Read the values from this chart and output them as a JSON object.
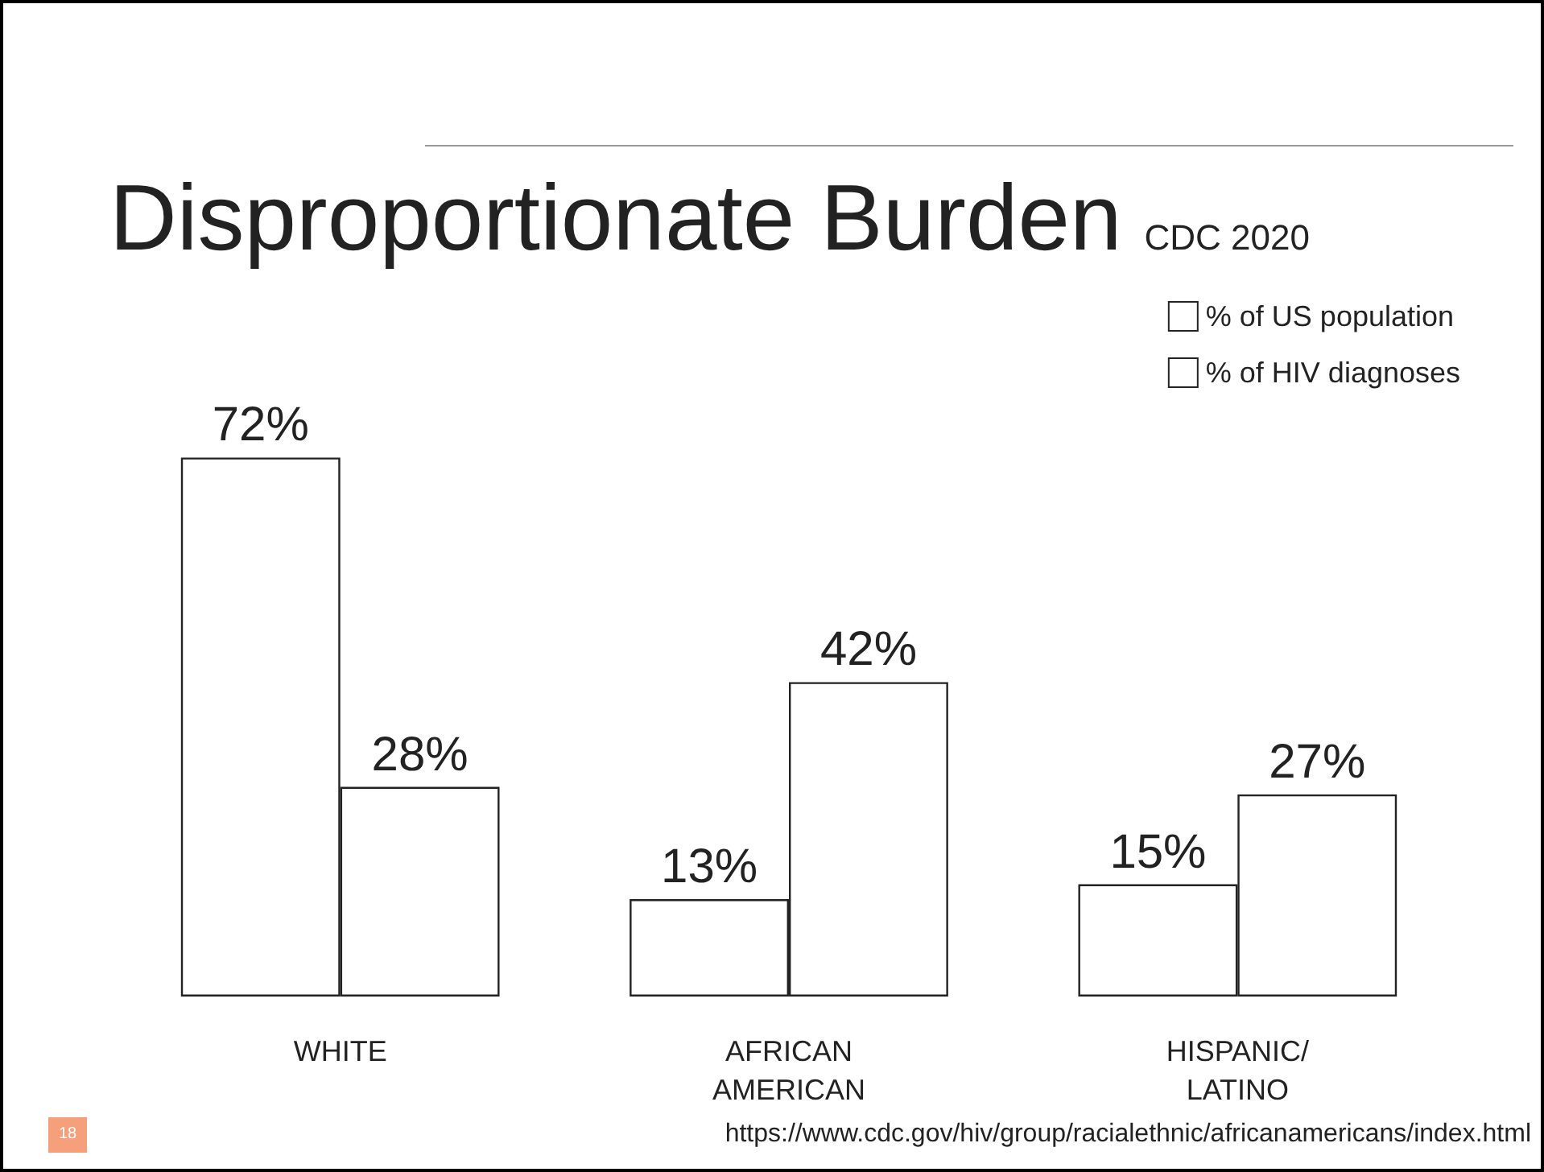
{
  "chart_data": {
    "type": "bar",
    "title": "Disproportionate Burden",
    "subtitle": "CDC 2020",
    "categories": [
      "WHITE",
      "AFRICAN\nAMERICAN",
      "HISPANIC/\nLATINO"
    ],
    "series": [
      {
        "name": "% of US population",
        "color": "#ffffff",
        "values": [
          72,
          13,
          15
        ],
        "value_labels": [
          "72%",
          "13%",
          "15%"
        ]
      },
      {
        "name": "% of HIV diagnoses",
        "color": "#ffffff",
        "values": [
          28,
          42,
          27
        ],
        "value_labels": [
          "28%",
          "42%",
          "27%"
        ]
      }
    ],
    "legend": "top right",
    "annotations": [
      "18",
      "https://www.cdc.gov/hiv/group/racialethnic/africanamericans/index.html"
    ]
  }
}
